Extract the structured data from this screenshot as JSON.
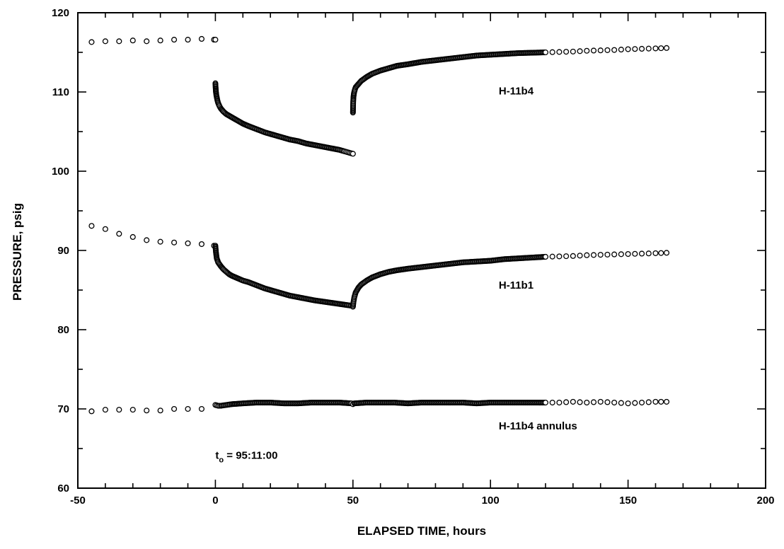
{
  "chart_data": {
    "type": "scatter",
    "title": "",
    "xlabel": "ELAPSED TIME, hours",
    "ylabel": "PRESSURE, psig",
    "xlim": [
      -50,
      200
    ],
    "ylim": [
      60,
      120
    ],
    "x_ticks": [
      -50,
      0,
      50,
      100,
      150,
      200
    ],
    "y_ticks": [
      60,
      70,
      80,
      90,
      100,
      110,
      120
    ],
    "x_minor_step": 10,
    "y_minor_step": 5,
    "grid": false,
    "legend": "none",
    "marker": "open-circle",
    "series": [
      {
        "label": "H-11b4",
        "segments": [
          {
            "x": [
              -45,
              -40,
              -35,
              -30,
              -25,
              -20,
              -15,
              -10,
              -5,
              -0.5,
              0
            ],
            "y": [
              116.3,
              116.4,
              116.4,
              116.5,
              116.4,
              116.5,
              116.6,
              116.6,
              116.7,
              116.6,
              116.6
            ]
          },
          {
            "x": [
              0,
              0.1,
              0.2,
              0.4,
              0.7,
              1,
              1.5,
              2,
              3,
              4,
              5,
              6,
              8,
              10,
              12,
              15,
              18,
              21,
              24,
              27,
              30,
              33,
              36,
              39,
              42,
              45,
              47,
              48,
              49,
              50
            ],
            "y": [
              111.1,
              110.5,
              110.0,
              109.5,
              109.0,
              108.6,
              108.2,
              107.9,
              107.5,
              107.2,
              107.0,
              106.8,
              106.4,
              106.0,
              105.7,
              105.3,
              104.9,
              104.6,
              104.3,
              104.0,
              103.8,
              103.5,
              103.3,
              103.1,
              102.9,
              102.7,
              102.5,
              102.4,
              102.3,
              102.2
            ]
          },
          {
            "x": [
              50,
              50.05,
              50.1,
              50.2,
              50.4,
              50.7,
              51,
              52,
              53,
              55,
              57,
              60,
              63,
              66,
              70,
              75,
              80,
              85,
              90,
              95,
              100,
              105,
              110,
              115,
              120,
              125,
              130,
              135,
              140,
              145,
              150,
              155,
              160,
              164
            ],
            "y": [
              107.4,
              108.2,
              108.8,
              109.4,
              109.9,
              110.3,
              110.6,
              111.0,
              111.4,
              111.9,
              112.3,
              112.7,
              113.0,
              113.3,
              113.5,
              113.8,
              114.0,
              114.2,
              114.4,
              114.6,
              114.7,
              114.8,
              114.9,
              114.95,
              115.0,
              115.05,
              115.1,
              115.2,
              115.25,
              115.3,
              115.4,
              115.45,
              115.5,
              115.55
            ]
          }
        ]
      },
      {
        "label": "H-11b1",
        "segments": [
          {
            "x": [
              -45,
              -40,
              -35,
              -30,
              -25,
              -20,
              -15,
              -10,
              -5,
              -0.5
            ],
            "y": [
              93.1,
              92.7,
              92.1,
              91.7,
              91.3,
              91.1,
              91.0,
              90.9,
              90.8,
              90.6
            ]
          },
          {
            "x": [
              0,
              0.2,
              0.5,
              1,
              2,
              3,
              4,
              5,
              6,
              8,
              10,
              12,
              15,
              18,
              21,
              24,
              27,
              30,
              33,
              36,
              40,
              44,
              48,
              50
            ],
            "y": [
              90.6,
              89.8,
              89.0,
              88.5,
              88.0,
              87.6,
              87.3,
              87.0,
              86.8,
              86.5,
              86.2,
              86.0,
              85.6,
              85.2,
              84.9,
              84.6,
              84.3,
              84.1,
              83.9,
              83.7,
              83.5,
              83.3,
              83.1,
              83.0
            ]
          },
          {
            "x": [
              50,
              50.2,
              50.5,
              51,
              52,
              53,
              55,
              57,
              60,
              63,
              66,
              70,
              75,
              80,
              85,
              90,
              95,
              100,
              105,
              110,
              115,
              120,
              125,
              130,
              135,
              140,
              145,
              150,
              155,
              160,
              164
            ],
            "y": [
              82.9,
              83.5,
              84.1,
              84.7,
              85.3,
              85.7,
              86.2,
              86.6,
              87.0,
              87.3,
              87.5,
              87.7,
              87.9,
              88.1,
              88.3,
              88.5,
              88.6,
              88.7,
              88.9,
              89.0,
              89.1,
              89.2,
              89.25,
              89.3,
              89.4,
              89.45,
              89.5,
              89.55,
              89.6,
              89.65,
              89.7
            ]
          }
        ]
      },
      {
        "label": "H-11b4 annulus",
        "segments": [
          {
            "x": [
              -45,
              -40,
              -35,
              -30,
              -25,
              -20,
              -15,
              -10,
              -5
            ],
            "y": [
              69.7,
              69.9,
              69.9,
              69.9,
              69.8,
              69.8,
              70.0,
              70.0,
              70.0
            ]
          },
          {
            "x": [
              0,
              1,
              2,
              4,
              6,
              10,
              15,
              20,
              25,
              30,
              35,
              40,
              45,
              49.5,
              50,
              50.5,
              55,
              60,
              65,
              70,
              75,
              80,
              85,
              90,
              95,
              100,
              105,
              110,
              115,
              120,
              125,
              130,
              135,
              140,
              145,
              150,
              155,
              160,
              164
            ],
            "y": [
              70.5,
              70.4,
              70.4,
              70.5,
              70.6,
              70.7,
              70.8,
              70.8,
              70.7,
              70.7,
              70.8,
              70.8,
              70.8,
              70.7,
              70.6,
              70.7,
              70.8,
              70.8,
              70.8,
              70.7,
              70.8,
              70.8,
              70.8,
              70.8,
              70.7,
              70.8,
              70.8,
              70.8,
              70.8,
              70.8,
              70.8,
              70.9,
              70.8,
              70.9,
              70.8,
              70.7,
              70.8,
              70.9,
              70.9
            ]
          }
        ]
      }
    ],
    "annotations": [
      {
        "key": "label_b4",
        "text": "H-11b4",
        "x": 103,
        "y": 109.7
      },
      {
        "key": "label_b1",
        "text": "H-11b1",
        "x": 103,
        "y": 85.2
      },
      {
        "key": "label_annulus",
        "text": "H-11b4 annulus",
        "x": 103,
        "y": 67.4
      },
      {
        "key": "t0",
        "text_main": "t",
        "text_sub": "o",
        "text_rest": " = 95:11:00",
        "x": 0,
        "y": 63.7
      }
    ]
  }
}
